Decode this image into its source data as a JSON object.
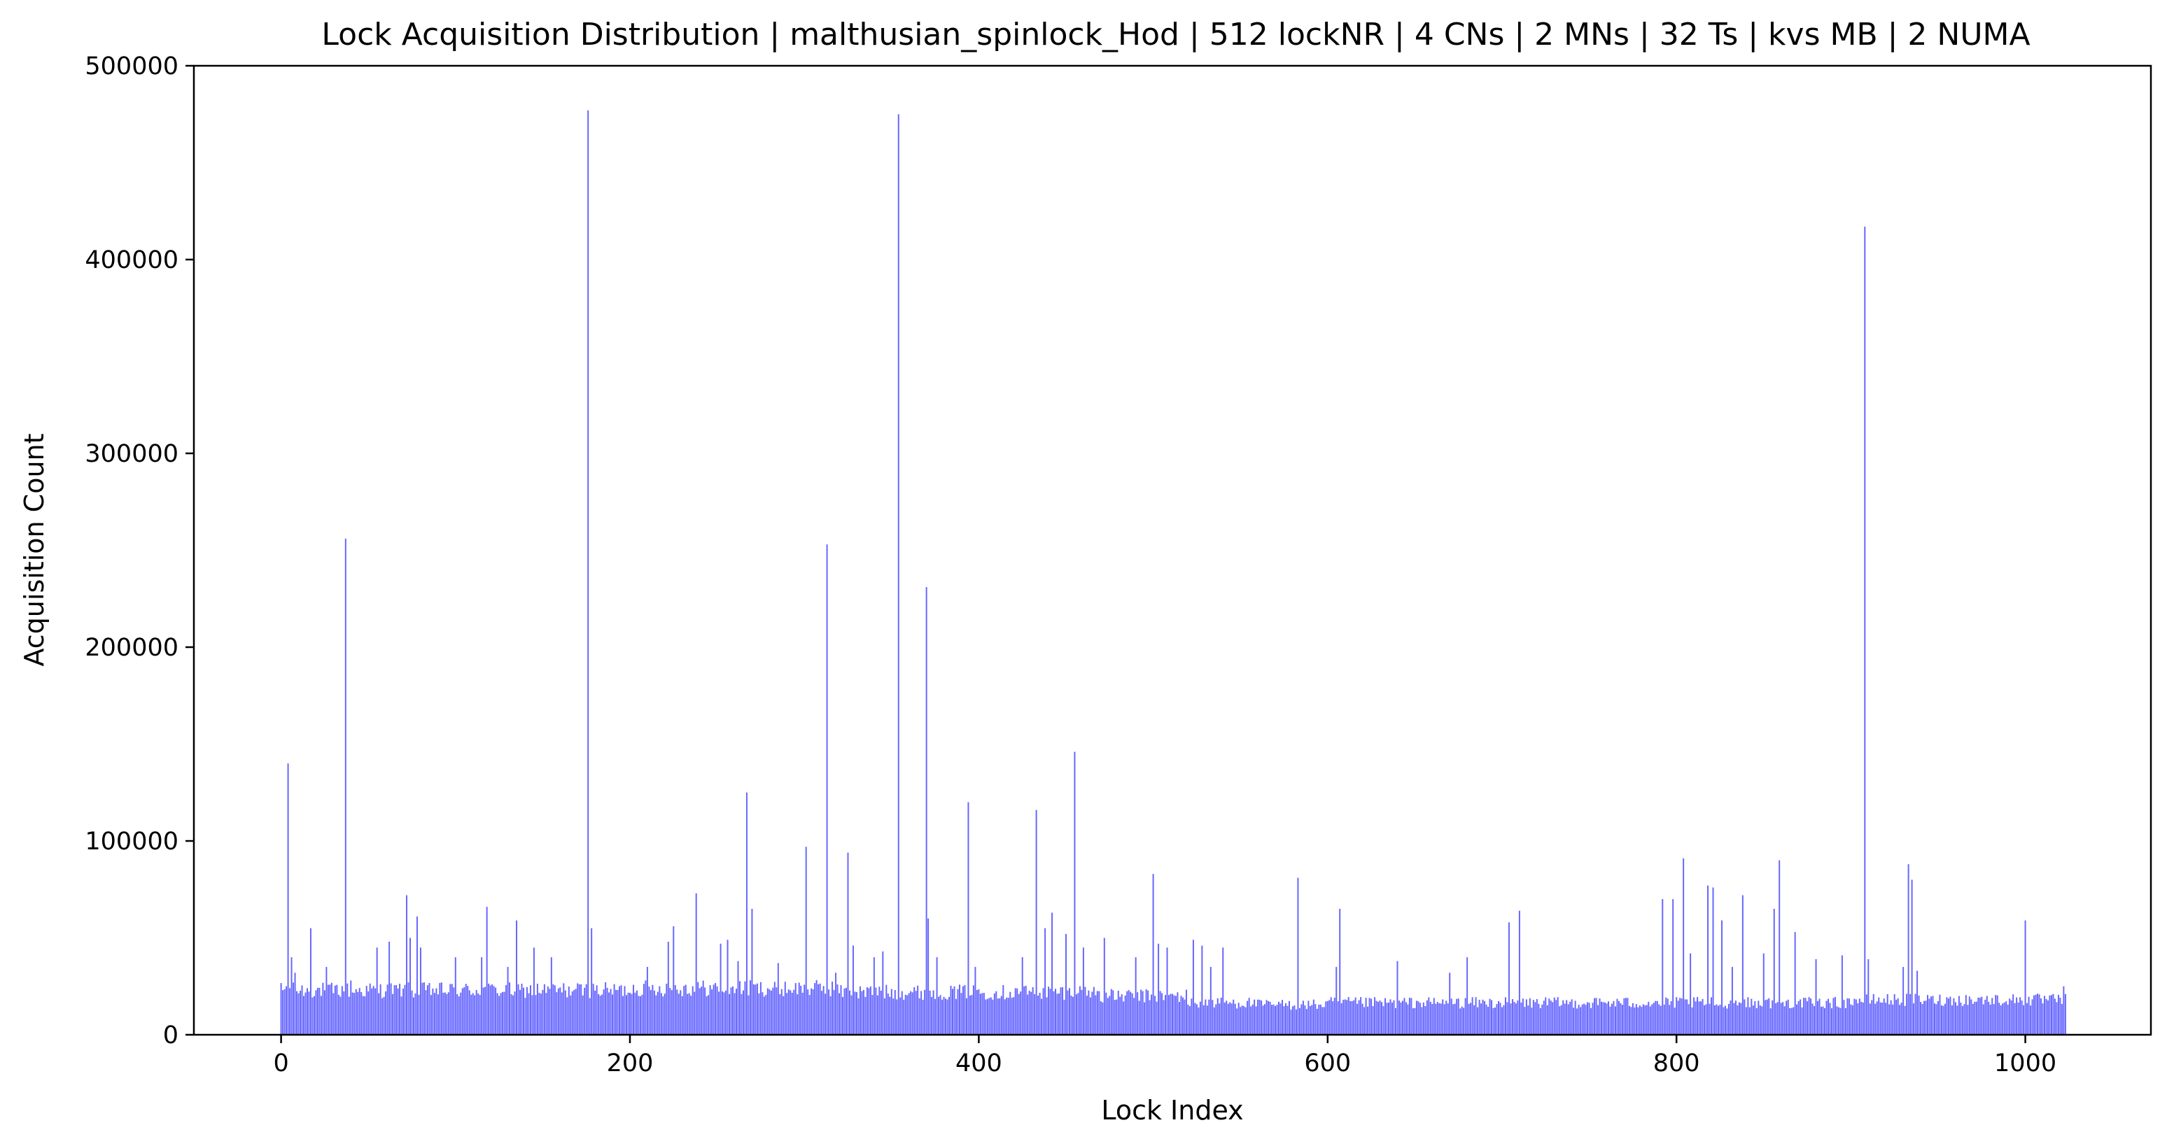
{
  "chart_data": {
    "type": "bar",
    "title": "Lock Acquisition Distribution | malthusian_spinlock_Hod | 512 lockNR | 4 CNs | 2 MNs | 32 Ts | kvs MB | 2 NUMA",
    "xlabel": "Lock Index",
    "ylabel": "Acquisition Count",
    "xlim": [
      -50,
      1072
    ],
    "ylim": [
      0,
      500000
    ],
    "x_ticks": [
      0,
      200,
      400,
      600,
      800,
      1000
    ],
    "y_ticks": [
      0,
      100000,
      200000,
      300000,
      400000,
      500000
    ],
    "grid": false,
    "legend": false,
    "bar_color": "#0000ff",
    "bar_opacity": 0.6,
    "lock_count": 1024,
    "baseline_segments": [
      {
        "from": 0,
        "to": 200,
        "value": 23000
      },
      {
        "from": 200,
        "to": 320,
        "value": 24000
      },
      {
        "from": 320,
        "to": 470,
        "value": 22000
      },
      {
        "from": 470,
        "to": 520,
        "value": 20000
      },
      {
        "from": 520,
        "to": 560,
        "value": 16500
      },
      {
        "from": 560,
        "to": 600,
        "value": 15500
      },
      {
        "from": 600,
        "to": 900,
        "value": 16500
      },
      {
        "from": 900,
        "to": 1024,
        "value": 18000
      }
    ],
    "peaks": [
      {
        "x": 3,
        "y": 25000
      },
      {
        "x": 4,
        "y": 140000
      },
      {
        "x": 6,
        "y": 40000
      },
      {
        "x": 8,
        "y": 32000
      },
      {
        "x": 17,
        "y": 55000
      },
      {
        "x": 26,
        "y": 35000
      },
      {
        "x": 37,
        "y": 256000
      },
      {
        "x": 40,
        "y": 28000
      },
      {
        "x": 55,
        "y": 45000
      },
      {
        "x": 62,
        "y": 48000
      },
      {
        "x": 72,
        "y": 72000
      },
      {
        "x": 74,
        "y": 50000
      },
      {
        "x": 78,
        "y": 61000
      },
      {
        "x": 80,
        "y": 45000
      },
      {
        "x": 100,
        "y": 40000
      },
      {
        "x": 115,
        "y": 40000
      },
      {
        "x": 118,
        "y": 66000
      },
      {
        "x": 130,
        "y": 35000
      },
      {
        "x": 135,
        "y": 59000
      },
      {
        "x": 145,
        "y": 45000
      },
      {
        "x": 155,
        "y": 40000
      },
      {
        "x": 176,
        "y": 477000
      },
      {
        "x": 178,
        "y": 55000
      },
      {
        "x": 210,
        "y": 35000
      },
      {
        "x": 222,
        "y": 48000
      },
      {
        "x": 225,
        "y": 56000
      },
      {
        "x": 238,
        "y": 73000
      },
      {
        "x": 252,
        "y": 47000
      },
      {
        "x": 256,
        "y": 49000
      },
      {
        "x": 262,
        "y": 38000
      },
      {
        "x": 267,
        "y": 125000
      },
      {
        "x": 270,
        "y": 65000
      },
      {
        "x": 285,
        "y": 37000
      },
      {
        "x": 301,
        "y": 97000
      },
      {
        "x": 313,
        "y": 253000
      },
      {
        "x": 318,
        "y": 32000
      },
      {
        "x": 325,
        "y": 94000
      },
      {
        "x": 328,
        "y": 46000
      },
      {
        "x": 340,
        "y": 40000
      },
      {
        "x": 345,
        "y": 43000
      },
      {
        "x": 354,
        "y": 475000
      },
      {
        "x": 370,
        "y": 231000
      },
      {
        "x": 371,
        "y": 60000
      },
      {
        "x": 376,
        "y": 40000
      },
      {
        "x": 394,
        "y": 120000
      },
      {
        "x": 398,
        "y": 35000
      },
      {
        "x": 425,
        "y": 40000
      },
      {
        "x": 433,
        "y": 116000
      },
      {
        "x": 438,
        "y": 55000
      },
      {
        "x": 442,
        "y": 63000
      },
      {
        "x": 450,
        "y": 52000
      },
      {
        "x": 455,
        "y": 146000
      },
      {
        "x": 460,
        "y": 45000
      },
      {
        "x": 472,
        "y": 50000
      },
      {
        "x": 490,
        "y": 40000
      },
      {
        "x": 500,
        "y": 83000
      },
      {
        "x": 503,
        "y": 47000
      },
      {
        "x": 508,
        "y": 45000
      },
      {
        "x": 523,
        "y": 49000
      },
      {
        "x": 528,
        "y": 46000
      },
      {
        "x": 533,
        "y": 35000
      },
      {
        "x": 540,
        "y": 45000
      },
      {
        "x": 583,
        "y": 81000
      },
      {
        "x": 605,
        "y": 35000
      },
      {
        "x": 607,
        "y": 65000
      },
      {
        "x": 640,
        "y": 38000
      },
      {
        "x": 670,
        "y": 32000
      },
      {
        "x": 680,
        "y": 40000
      },
      {
        "x": 704,
        "y": 58000
      },
      {
        "x": 710,
        "y": 64000
      },
      {
        "x": 792,
        "y": 70000
      },
      {
        "x": 798,
        "y": 70000
      },
      {
        "x": 804,
        "y": 91000
      },
      {
        "x": 808,
        "y": 42000
      },
      {
        "x": 818,
        "y": 77000
      },
      {
        "x": 821,
        "y": 76000
      },
      {
        "x": 826,
        "y": 59000
      },
      {
        "x": 832,
        "y": 35000
      },
      {
        "x": 838,
        "y": 72000
      },
      {
        "x": 850,
        "y": 42000
      },
      {
        "x": 856,
        "y": 65000
      },
      {
        "x": 859,
        "y": 90000
      },
      {
        "x": 868,
        "y": 53000
      },
      {
        "x": 880,
        "y": 39000
      },
      {
        "x": 895,
        "y": 41000
      },
      {
        "x": 908,
        "y": 417000
      },
      {
        "x": 910,
        "y": 39000
      },
      {
        "x": 930,
        "y": 35000
      },
      {
        "x": 933,
        "y": 88000
      },
      {
        "x": 935,
        "y": 80000
      },
      {
        "x": 938,
        "y": 33000
      },
      {
        "x": 1000,
        "y": 59000
      },
      {
        "x": 1022,
        "y": 25000
      }
    ]
  }
}
